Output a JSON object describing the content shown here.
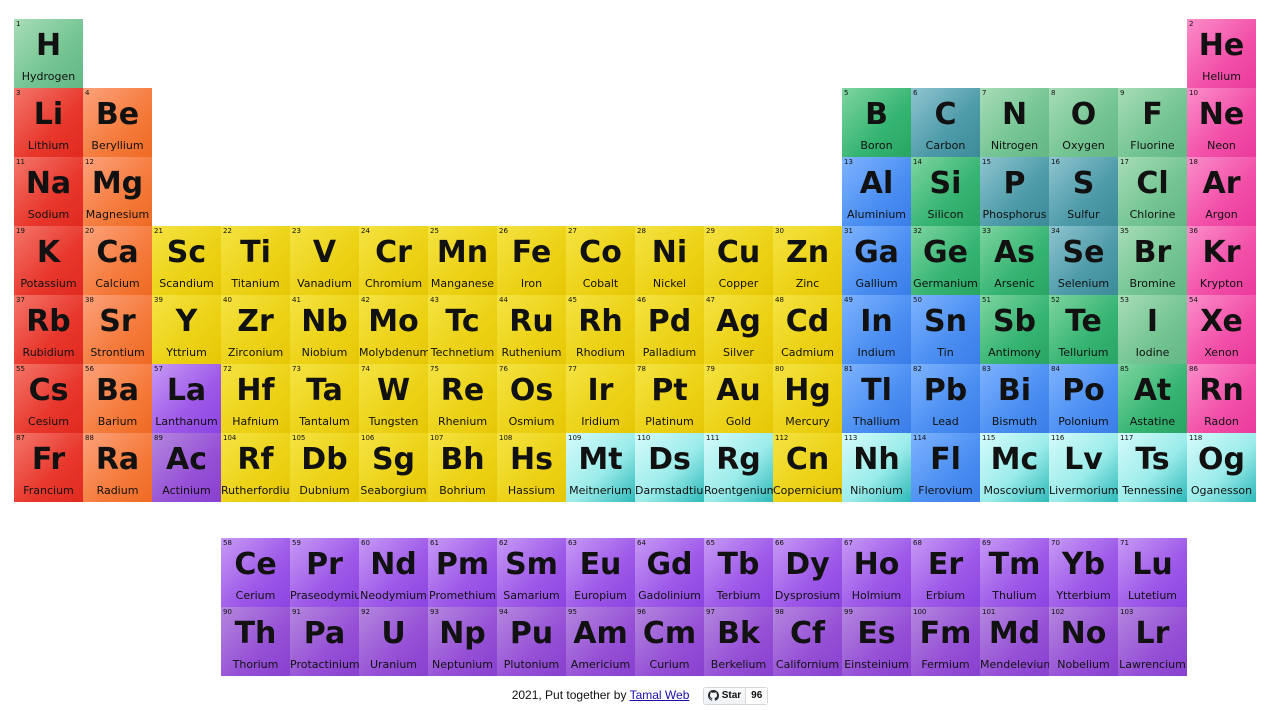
{
  "elements": [
    {
      "n": 1,
      "s": "H",
      "name": "Hydrogen",
      "g": 1,
      "p": 1,
      "c": "nonmetal"
    },
    {
      "n": 2,
      "s": "He",
      "name": "Helium",
      "g": 18,
      "p": 1,
      "c": "noble"
    },
    {
      "n": 3,
      "s": "Li",
      "name": "Lithium",
      "g": 1,
      "p": 2,
      "c": "alkali"
    },
    {
      "n": 4,
      "s": "Be",
      "name": "Beryllium",
      "g": 2,
      "p": 2,
      "c": "alkaline"
    },
    {
      "n": 5,
      "s": "B",
      "name": "Boron",
      "g": 13,
      "p": 2,
      "c": "metalloid"
    },
    {
      "n": 6,
      "s": "C",
      "name": "Carbon",
      "g": 14,
      "p": 2,
      "c": "carbon"
    },
    {
      "n": 7,
      "s": "N",
      "name": "Nitrogen",
      "g": 15,
      "p": 2,
      "c": "nonmetal"
    },
    {
      "n": 8,
      "s": "O",
      "name": "Oxygen",
      "g": 16,
      "p": 2,
      "c": "nonmetal"
    },
    {
      "n": 9,
      "s": "F",
      "name": "Fluorine",
      "g": 17,
      "p": 2,
      "c": "nonmetal"
    },
    {
      "n": 10,
      "s": "Ne",
      "name": "Neon",
      "g": 18,
      "p": 2,
      "c": "noble"
    },
    {
      "n": 11,
      "s": "Na",
      "name": "Sodium",
      "g": 1,
      "p": 3,
      "c": "alkali"
    },
    {
      "n": 12,
      "s": "Mg",
      "name": "Magnesium",
      "g": 2,
      "p": 3,
      "c": "alkaline"
    },
    {
      "n": 13,
      "s": "Al",
      "name": "Aluminium",
      "g": 13,
      "p": 3,
      "c": "post"
    },
    {
      "n": 14,
      "s": "Si",
      "name": "Silicon",
      "g": 14,
      "p": 3,
      "c": "metalloid"
    },
    {
      "n": 15,
      "s": "P",
      "name": "Phosphorus",
      "g": 15,
      "p": 3,
      "c": "carbon"
    },
    {
      "n": 16,
      "s": "S",
      "name": "Sulfur",
      "g": 16,
      "p": 3,
      "c": "carbon"
    },
    {
      "n": 17,
      "s": "Cl",
      "name": "Chlorine",
      "g": 17,
      "p": 3,
      "c": "nonmetal"
    },
    {
      "n": 18,
      "s": "Ar",
      "name": "Argon",
      "g": 18,
      "p": 3,
      "c": "noble"
    },
    {
      "n": 19,
      "s": "K",
      "name": "Potassium",
      "g": 1,
      "p": 4,
      "c": "alkali"
    },
    {
      "n": 20,
      "s": "Ca",
      "name": "Calcium",
      "g": 2,
      "p": 4,
      "c": "alkaline"
    },
    {
      "n": 21,
      "s": "Sc",
      "name": "Scandium",
      "g": 3,
      "p": 4,
      "c": "trans"
    },
    {
      "n": 22,
      "s": "Ti",
      "name": "Titanium",
      "g": 4,
      "p": 4,
      "c": "trans"
    },
    {
      "n": 23,
      "s": "V",
      "name": "Vanadium",
      "g": 5,
      "p": 4,
      "c": "trans"
    },
    {
      "n": 24,
      "s": "Cr",
      "name": "Chromium",
      "g": 6,
      "p": 4,
      "c": "trans"
    },
    {
      "n": 25,
      "s": "Mn",
      "name": "Manganese",
      "g": 7,
      "p": 4,
      "c": "trans"
    },
    {
      "n": 26,
      "s": "Fe",
      "name": "Iron",
      "g": 8,
      "p": 4,
      "c": "trans"
    },
    {
      "n": 27,
      "s": "Co",
      "name": "Cobalt",
      "g": 9,
      "p": 4,
      "c": "trans"
    },
    {
      "n": 28,
      "s": "Ni",
      "name": "Nickel",
      "g": 10,
      "p": 4,
      "c": "trans"
    },
    {
      "n": 29,
      "s": "Cu",
      "name": "Copper",
      "g": 11,
      "p": 4,
      "c": "trans"
    },
    {
      "n": 30,
      "s": "Zn",
      "name": "Zinc",
      "g": 12,
      "p": 4,
      "c": "trans"
    },
    {
      "n": 31,
      "s": "Ga",
      "name": "Gallium",
      "g": 13,
      "p": 4,
      "c": "post"
    },
    {
      "n": 32,
      "s": "Ge",
      "name": "Germanium",
      "g": 14,
      "p": 4,
      "c": "metalloid"
    },
    {
      "n": 33,
      "s": "As",
      "name": "Arsenic",
      "g": 15,
      "p": 4,
      "c": "metalloid"
    },
    {
      "n": 34,
      "s": "Se",
      "name": "Selenium",
      "g": 16,
      "p": 4,
      "c": "carbon"
    },
    {
      "n": 35,
      "s": "Br",
      "name": "Bromine",
      "g": 17,
      "p": 4,
      "c": "nonmetal"
    },
    {
      "n": 36,
      "s": "Kr",
      "name": "Krypton",
      "g": 18,
      "p": 4,
      "c": "noble"
    },
    {
      "n": 37,
      "s": "Rb",
      "name": "Rubidium",
      "g": 1,
      "p": 5,
      "c": "alkali"
    },
    {
      "n": 38,
      "s": "Sr",
      "name": "Strontium",
      "g": 2,
      "p": 5,
      "c": "alkaline"
    },
    {
      "n": 39,
      "s": "Y",
      "name": "Yttrium",
      "g": 3,
      "p": 5,
      "c": "trans"
    },
    {
      "n": 40,
      "s": "Zr",
      "name": "Zirconium",
      "g": 4,
      "p": 5,
      "c": "trans"
    },
    {
      "n": 41,
      "s": "Nb",
      "name": "Niobium",
      "g": 5,
      "p": 5,
      "c": "trans"
    },
    {
      "n": 42,
      "s": "Mo",
      "name": "Molybdenum",
      "g": 6,
      "p": 5,
      "c": "trans"
    },
    {
      "n": 43,
      "s": "Tc",
      "name": "Technetium",
      "g": 7,
      "p": 5,
      "c": "trans"
    },
    {
      "n": 44,
      "s": "Ru",
      "name": "Ruthenium",
      "g": 8,
      "p": 5,
      "c": "trans"
    },
    {
      "n": 45,
      "s": "Rh",
      "name": "Rhodium",
      "g": 9,
      "p": 5,
      "c": "trans"
    },
    {
      "n": 46,
      "s": "Pd",
      "name": "Palladium",
      "g": 10,
      "p": 5,
      "c": "trans"
    },
    {
      "n": 47,
      "s": "Ag",
      "name": "Silver",
      "g": 11,
      "p": 5,
      "c": "trans"
    },
    {
      "n": 48,
      "s": "Cd",
      "name": "Cadmium",
      "g": 12,
      "p": 5,
      "c": "trans"
    },
    {
      "n": 49,
      "s": "In",
      "name": "Indium",
      "g": 13,
      "p": 5,
      "c": "post"
    },
    {
      "n": 50,
      "s": "Sn",
      "name": "Tin",
      "g": 14,
      "p": 5,
      "c": "post"
    },
    {
      "n": 51,
      "s": "Sb",
      "name": "Antimony",
      "g": 15,
      "p": 5,
      "c": "metalloid"
    },
    {
      "n": 52,
      "s": "Te",
      "name": "Tellurium",
      "g": 16,
      "p": 5,
      "c": "metalloid"
    },
    {
      "n": 53,
      "s": "I",
      "name": "Iodine",
      "g": 17,
      "p": 5,
      "c": "nonmetal"
    },
    {
      "n": 54,
      "s": "Xe",
      "name": "Xenon",
      "g": 18,
      "p": 5,
      "c": "noble"
    },
    {
      "n": 55,
      "s": "Cs",
      "name": "Cesium",
      "g": 1,
      "p": 6,
      "c": "alkali"
    },
    {
      "n": 56,
      "s": "Ba",
      "name": "Barium",
      "g": 2,
      "p": 6,
      "c": "alkaline"
    },
    {
      "n": 57,
      "s": "La",
      "name": "Lanthanum",
      "g": 3,
      "p": 6,
      "c": "lanth"
    },
    {
      "n": 72,
      "s": "Hf",
      "name": "Hafnium",
      "g": 4,
      "p": 6,
      "c": "trans"
    },
    {
      "n": 73,
      "s": "Ta",
      "name": "Tantalum",
      "g": 5,
      "p": 6,
      "c": "trans"
    },
    {
      "n": 74,
      "s": "W",
      "name": "Tungsten",
      "g": 6,
      "p": 6,
      "c": "trans"
    },
    {
      "n": 75,
      "s": "Re",
      "name": "Rhenium",
      "g": 7,
      "p": 6,
      "c": "trans"
    },
    {
      "n": 76,
      "s": "Os",
      "name": "Osmium",
      "g": 8,
      "p": 6,
      "c": "trans"
    },
    {
      "n": 77,
      "s": "Ir",
      "name": "Iridium",
      "g": 9,
      "p": 6,
      "c": "trans"
    },
    {
      "n": 78,
      "s": "Pt",
      "name": "Platinum",
      "g": 10,
      "p": 6,
      "c": "trans"
    },
    {
      "n": 79,
      "s": "Au",
      "name": "Gold",
      "g": 11,
      "p": 6,
      "c": "trans"
    },
    {
      "n": 80,
      "s": "Hg",
      "name": "Mercury",
      "g": 12,
      "p": 6,
      "c": "trans"
    },
    {
      "n": 81,
      "s": "Tl",
      "name": "Thallium",
      "g": 13,
      "p": 6,
      "c": "post"
    },
    {
      "n": 82,
      "s": "Pb",
      "name": "Lead",
      "g": 14,
      "p": 6,
      "c": "post"
    },
    {
      "n": 83,
      "s": "Bi",
      "name": "Bismuth",
      "g": 15,
      "p": 6,
      "c": "post"
    },
    {
      "n": 84,
      "s": "Po",
      "name": "Polonium",
      "g": 16,
      "p": 6,
      "c": "post"
    },
    {
      "n": 85,
      "s": "At",
      "name": "Astatine",
      "g": 17,
      "p": 6,
      "c": "metalloid"
    },
    {
      "n": 86,
      "s": "Rn",
      "name": "Radon",
      "g": 18,
      "p": 6,
      "c": "noble"
    },
    {
      "n": 87,
      "s": "Fr",
      "name": "Francium",
      "g": 1,
      "p": 7,
      "c": "alkali"
    },
    {
      "n": 88,
      "s": "Ra",
      "name": "Radium",
      "g": 2,
      "p": 7,
      "c": "alkaline"
    },
    {
      "n": 89,
      "s": "Ac",
      "name": "Actinium",
      "g": 3,
      "p": 7,
      "c": "act"
    },
    {
      "n": 104,
      "s": "Rf",
      "name": "Rutherfordium",
      "g": 4,
      "p": 7,
      "c": "trans"
    },
    {
      "n": 105,
      "s": "Db",
      "name": "Dubnium",
      "g": 5,
      "p": 7,
      "c": "trans"
    },
    {
      "n": 106,
      "s": "Sg",
      "name": "Seaborgium",
      "g": 6,
      "p": 7,
      "c": "trans"
    },
    {
      "n": 107,
      "s": "Bh",
      "name": "Bohrium",
      "g": 7,
      "p": 7,
      "c": "trans"
    },
    {
      "n": 108,
      "s": "Hs",
      "name": "Hassium",
      "g": 8,
      "p": 7,
      "c": "trans"
    },
    {
      "n": 109,
      "s": "Mt",
      "name": "Meitnerium",
      "g": 9,
      "p": 7,
      "c": "unknown"
    },
    {
      "n": 110,
      "s": "Ds",
      "name": "Darmstadtium",
      "g": 10,
      "p": 7,
      "c": "unknown"
    },
    {
      "n": 111,
      "s": "Rg",
      "name": "Roentgenium",
      "g": 11,
      "p": 7,
      "c": "unknown"
    },
    {
      "n": 112,
      "s": "Cn",
      "name": "Copernicium",
      "g": 12,
      "p": 7,
      "c": "trans"
    },
    {
      "n": 113,
      "s": "Nh",
      "name": "Nihonium",
      "g": 13,
      "p": 7,
      "c": "unknown"
    },
    {
      "n": 114,
      "s": "Fl",
      "name": "Flerovium",
      "g": 14,
      "p": 7,
      "c": "post"
    },
    {
      "n": 115,
      "s": "Mc",
      "name": "Moscovium",
      "g": 15,
      "p": 7,
      "c": "unknown"
    },
    {
      "n": 116,
      "s": "Lv",
      "name": "Livermorium",
      "g": 16,
      "p": 7,
      "c": "unknown"
    },
    {
      "n": 117,
      "s": "Ts",
      "name": "Tennessine",
      "g": 17,
      "p": 7,
      "c": "unknown"
    },
    {
      "n": 118,
      "s": "Og",
      "name": "Oganesson",
      "g": 18,
      "p": 7,
      "c": "unknown"
    },
    {
      "n": 58,
      "s": "Ce",
      "name": "Cerium",
      "g": 4,
      "p": 9,
      "c": "lanth"
    },
    {
      "n": 59,
      "s": "Pr",
      "name": "Praseodymium",
      "g": 5,
      "p": 9,
      "c": "lanth"
    },
    {
      "n": 60,
      "s": "Nd",
      "name": "Neodymium",
      "g": 6,
      "p": 9,
      "c": "lanth"
    },
    {
      "n": 61,
      "s": "Pm",
      "name": "Promethium",
      "g": 7,
      "p": 9,
      "c": "lanth"
    },
    {
      "n": 62,
      "s": "Sm",
      "name": "Samarium",
      "g": 8,
      "p": 9,
      "c": "lanth"
    },
    {
      "n": 63,
      "s": "Eu",
      "name": "Europium",
      "g": 9,
      "p": 9,
      "c": "lanth"
    },
    {
      "n": 64,
      "s": "Gd",
      "name": "Gadolinium",
      "g": 10,
      "p": 9,
      "c": "lanth"
    },
    {
      "n": 65,
      "s": "Tb",
      "name": "Terbium",
      "g": 11,
      "p": 9,
      "c": "lanth"
    },
    {
      "n": 66,
      "s": "Dy",
      "name": "Dysprosium",
      "g": 12,
      "p": 9,
      "c": "lanth"
    },
    {
      "n": 67,
      "s": "Ho",
      "name": "Holmium",
      "g": 13,
      "p": 9,
      "c": "lanth"
    },
    {
      "n": 68,
      "s": "Er",
      "name": "Erbium",
      "g": 14,
      "p": 9,
      "c": "lanth"
    },
    {
      "n": 69,
      "s": "Tm",
      "name": "Thulium",
      "g": 15,
      "p": 9,
      "c": "lanth"
    },
    {
      "n": 70,
      "s": "Yb",
      "name": "Ytterbium",
      "g": 16,
      "p": 9,
      "c": "lanth"
    },
    {
      "n": 71,
      "s": "Lu",
      "name": "Lutetium",
      "g": 17,
      "p": 9,
      "c": "lanth"
    },
    {
      "n": 90,
      "s": "Th",
      "name": "Thorium",
      "g": 4,
      "p": 10,
      "c": "act"
    },
    {
      "n": 91,
      "s": "Pa",
      "name": "Protactinium",
      "g": 5,
      "p": 10,
      "c": "act"
    },
    {
      "n": 92,
      "s": "U",
      "name": "Uranium",
      "g": 6,
      "p": 10,
      "c": "act"
    },
    {
      "n": 93,
      "s": "Np",
      "name": "Neptunium",
      "g": 7,
      "p": 10,
      "c": "act"
    },
    {
      "n": 94,
      "s": "Pu",
      "name": "Plutonium",
      "g": 8,
      "p": 10,
      "c": "act"
    },
    {
      "n": 95,
      "s": "Am",
      "name": "Americium",
      "g": 9,
      "p": 10,
      "c": "act"
    },
    {
      "n": 96,
      "s": "Cm",
      "name": "Curium",
      "g": 10,
      "p": 10,
      "c": "act"
    },
    {
      "n": 97,
      "s": "Bk",
      "name": "Berkelium",
      "g": 11,
      "p": 10,
      "c": "act"
    },
    {
      "n": 98,
      "s": "Cf",
      "name": "Californium",
      "g": 12,
      "p": 10,
      "c": "act"
    },
    {
      "n": 99,
      "s": "Es",
      "name": "Einsteinium",
      "g": 13,
      "p": 10,
      "c": "act"
    },
    {
      "n": 100,
      "s": "Fm",
      "name": "Fermium",
      "g": 14,
      "p": 10,
      "c": "act"
    },
    {
      "n": 101,
      "s": "Md",
      "name": "Mendelevium",
      "g": 15,
      "p": 10,
      "c": "act"
    },
    {
      "n": 102,
      "s": "No",
      "name": "Nobelium",
      "g": 16,
      "p": 10,
      "c": "act"
    },
    {
      "n": 103,
      "s": "Lr",
      "name": "Lawrencium",
      "g": 17,
      "p": 10,
      "c": "act"
    }
  ],
  "footer": {
    "text": "2021, Put together by ",
    "link_label": "Tamal Web",
    "star_label": "Star",
    "star_count": "96"
  }
}
